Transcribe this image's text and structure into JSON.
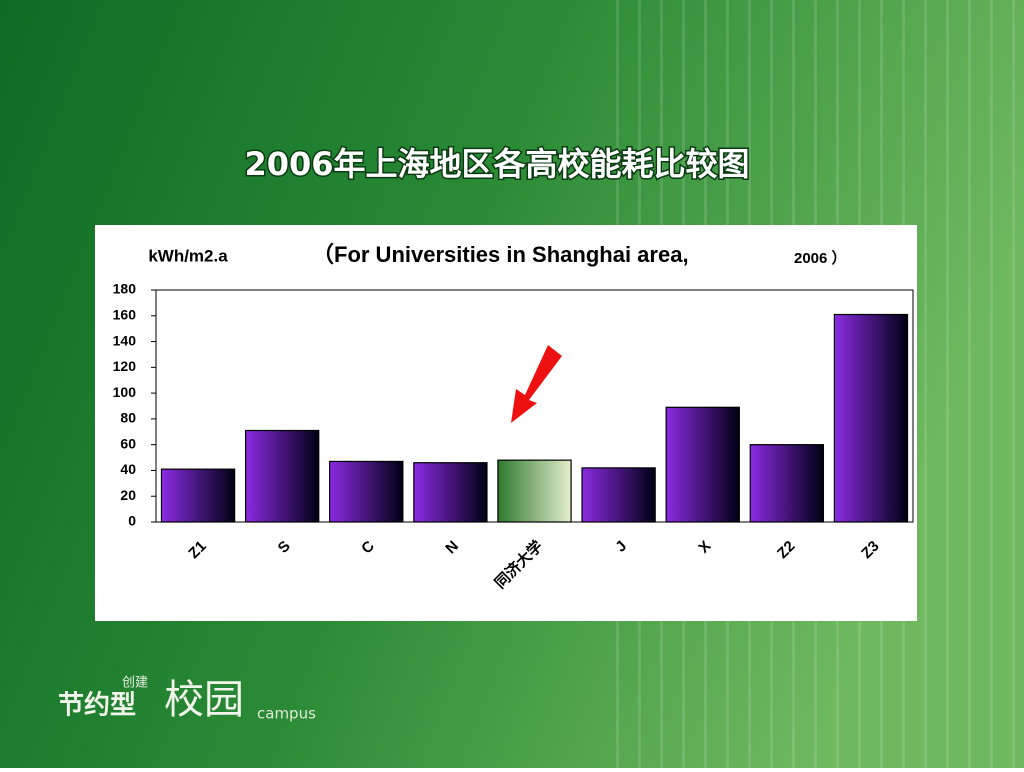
{
  "chart_data": {
    "type": "bar",
    "title": "2006年上海地区各高校能耗比较图",
    "subtitle": "（For Universities in Shanghai area,",
    "subtitle_year": "2006 ）",
    "y_label": "kWh/m2.a",
    "categories": [
      "Z1",
      "S",
      "C",
      "N",
      "同济大学",
      "J",
      "X",
      "Z2",
      "Z3"
    ],
    "values": [
      41,
      71,
      47,
      46,
      48,
      42,
      89,
      60,
      161
    ],
    "colors": [
      [
        "#8a2be2",
        "#000014"
      ],
      [
        "#8a2be2",
        "#000014"
      ],
      [
        "#8a2be2",
        "#000014"
      ],
      [
        "#8a2be2",
        "#000014"
      ],
      [
        "#2f7a2f",
        "#e4eecd"
      ],
      [
        "#8a2be2",
        "#000014"
      ],
      [
        "#8a2be2",
        "#000014"
      ],
      [
        "#8a2be2",
        "#000014"
      ],
      [
        "#8a2be2",
        "#000014"
      ]
    ],
    "ylim": [
      0,
      180
    ],
    "yticks": [
      0,
      20,
      40,
      60,
      80,
      100,
      120,
      140,
      160,
      180
    ],
    "grid": false
  },
  "logo": {
    "small": "创建",
    "main": "节约型",
    "big": "校园",
    "latin": "campus"
  }
}
